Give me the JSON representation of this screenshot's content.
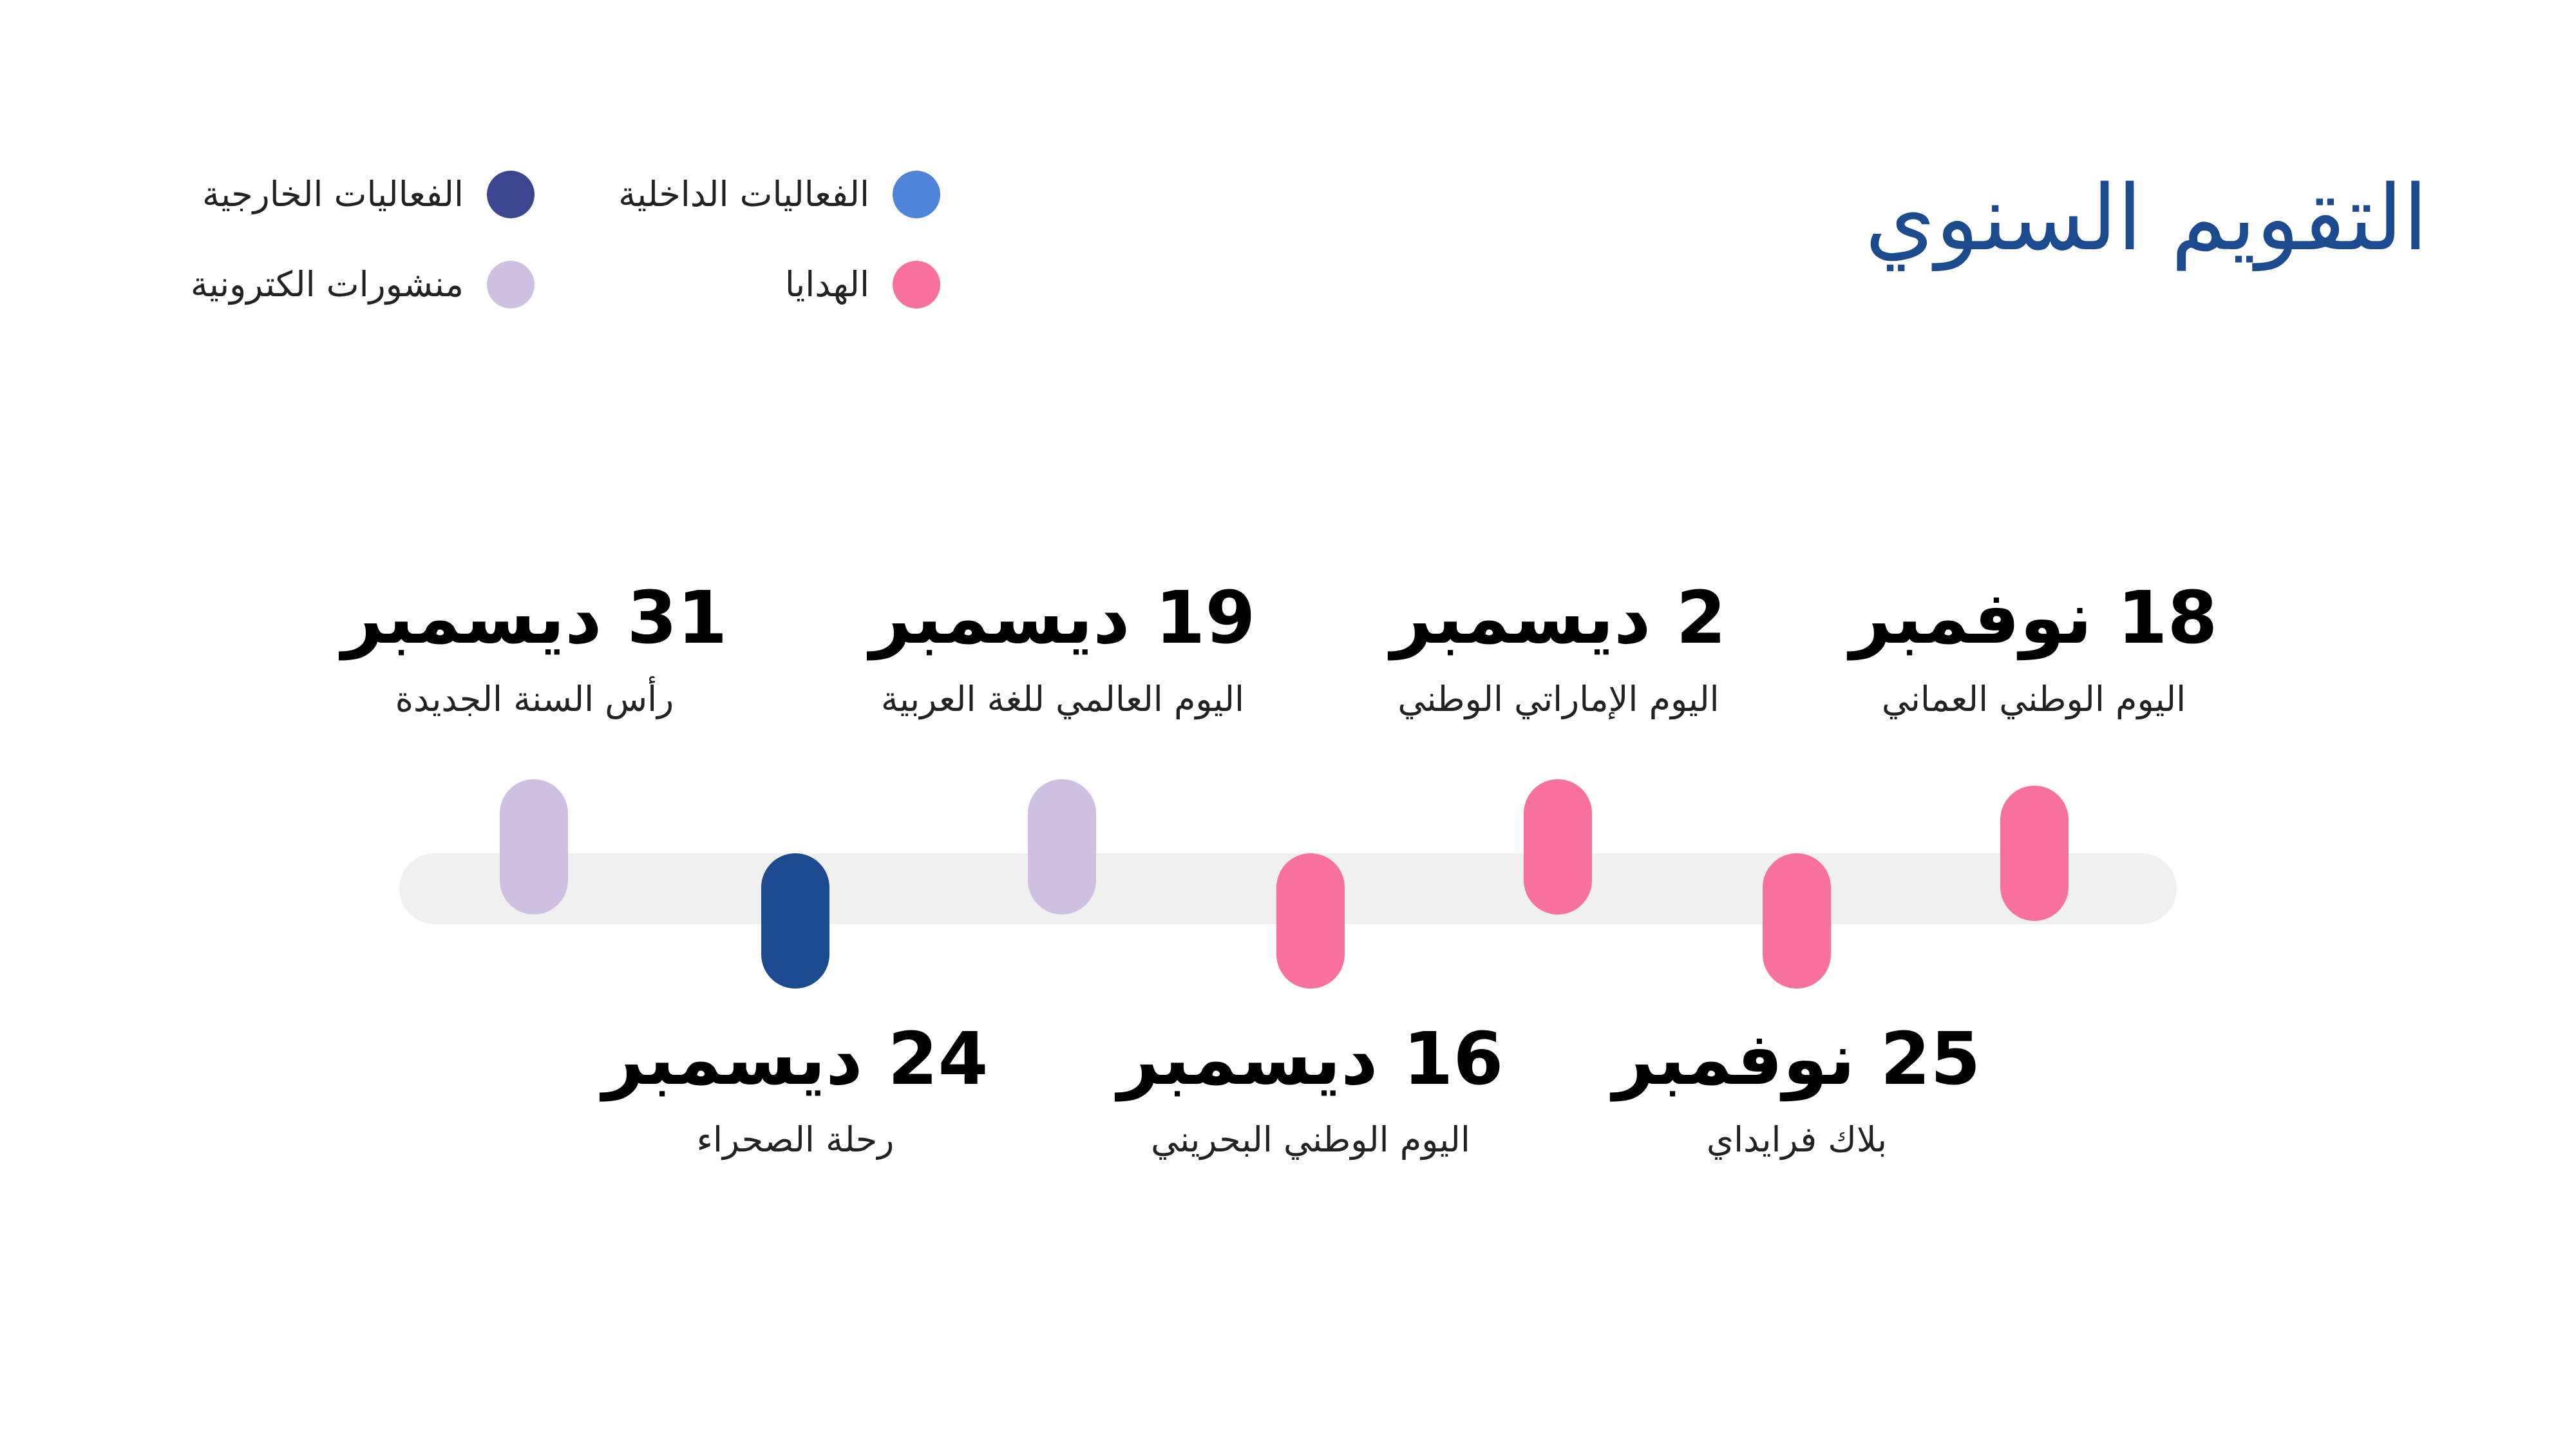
{
  "title": "التقويم السنوي",
  "legend": [
    {
      "label": "الفعاليات الداخلية",
      "color": "#4f84d9"
    },
    {
      "label": "الفعاليات الخارجية",
      "color": "#3c4590"
    },
    {
      "label": "الهدايا",
      "color": "#f7709e"
    },
    {
      "label": "منشورات الكترونية",
      "color": "#cdc0e0"
    }
  ],
  "events": [
    {
      "date": "18 نوفمبر",
      "label": "اليوم الوطني العماني",
      "color": "#f7709e"
    },
    {
      "date": "25 نوفمبر",
      "label": "بلاك فرايداي",
      "color": "#f7709e"
    },
    {
      "date": "2 ديسمبر",
      "label": "اليوم الإماراتي الوطني",
      "color": "#f7709e"
    },
    {
      "date": "16 ديسمبر",
      "label": "اليوم الوطني البحريني",
      "color": "#f7709e"
    },
    {
      "date": "19 ديسمبر",
      "label": "اليوم العالمي للغة العربية",
      "color": "#cdc0e0"
    },
    {
      "date": "24 ديسمبر",
      "label": "رحلة الصحراء",
      "color": "#1c4a8e"
    },
    {
      "date": "31 ديسمبر",
      "label": "رأس السنة الجديدة",
      "color": "#cdc0e0"
    }
  ]
}
